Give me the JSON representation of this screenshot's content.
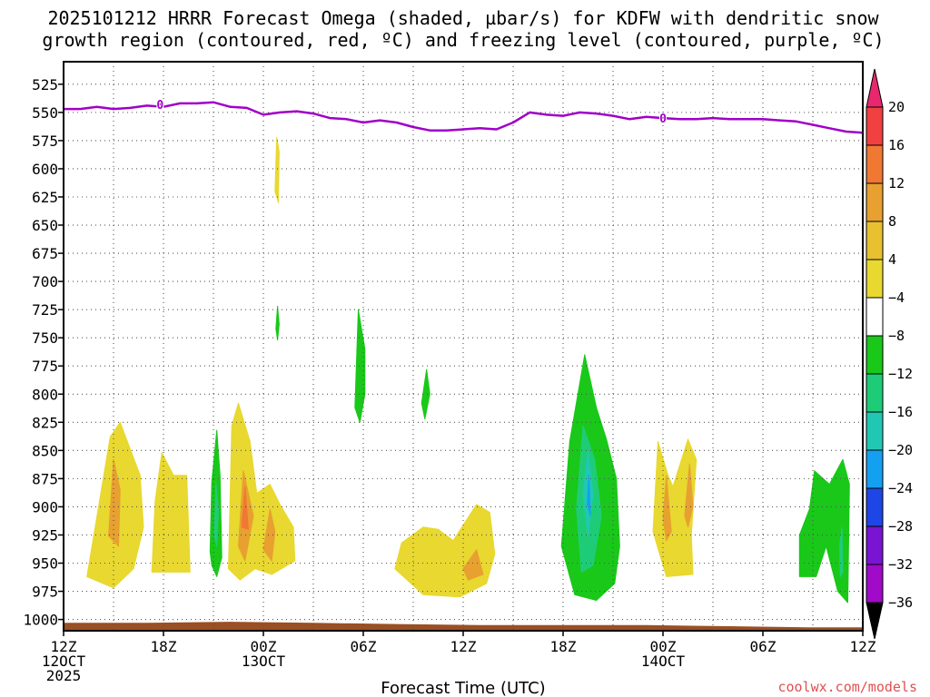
{
  "chart_data": {
    "type": "time-height contour",
    "title": [
      "2025101212 HRRR Forecast Omega (shaded, µbar/s) for KDFW with dendritic snow",
      "growth region (contoured, red, ºC) and freezing level (contoured, purple, ºC)"
    ],
    "xlabel": "Forecast Time (UTC)",
    "credit": "coolwx.com/models",
    "y_axis": {
      "unit": "hPa",
      "range": [
        1010,
        505
      ],
      "reversed": true,
      "ticks": [
        525,
        550,
        575,
        600,
        625,
        650,
        675,
        700,
        725,
        750,
        775,
        800,
        825,
        850,
        875,
        900,
        925,
        950,
        975,
        1000
      ]
    },
    "x_axis": {
      "unit": "forecast hour",
      "range": [
        0,
        48
      ],
      "ticks": [
        {
          "h": 0,
          "lines": [
            "12Z",
            "12OCT",
            "2025"
          ]
        },
        {
          "h": 6,
          "lines": [
            "18Z"
          ]
        },
        {
          "h": 12,
          "lines": [
            "00Z",
            "13OCT"
          ]
        },
        {
          "h": 18,
          "lines": [
            "06Z"
          ]
        },
        {
          "h": 24,
          "lines": [
            "12Z"
          ]
        },
        {
          "h": 30,
          "lines": [
            "18Z"
          ]
        },
        {
          "h": 36,
          "lines": [
            "00Z",
            "14OCT"
          ]
        },
        {
          "h": 42,
          "lines": [
            "06Z"
          ]
        },
        {
          "h": 48,
          "lines": [
            "12Z"
          ]
        }
      ]
    },
    "colorbar": {
      "ticks": [
        20,
        16,
        12,
        8,
        4,
        -4,
        -8,
        -12,
        -16,
        -20,
        -24,
        -28,
        -32,
        -36
      ],
      "colors": [
        "#e8286e",
        "#f04040",
        "#f07832",
        "#e8a030",
        "#e8c030",
        "#e8d830",
        "#ffffff",
        "#19c819",
        "#1ecc78",
        "#20c8b4",
        "#14a0f0",
        "#1e46e6",
        "#7814d2",
        "#a00ac8",
        "#a0a0a0",
        "#000000"
      ]
    },
    "freezing_level": {
      "color": "#a000c8",
      "hours": [
        0,
        1,
        2,
        3,
        4,
        5,
        6,
        7,
        8,
        9,
        10,
        11,
        12,
        13,
        14,
        15,
        16,
        17,
        18,
        19,
        20,
        21,
        22,
        23,
        24,
        25,
        26,
        27,
        28,
        29,
        30,
        31,
        32,
        33,
        34,
        35,
        36,
        37,
        38,
        39,
        40,
        41,
        42,
        43,
        44,
        45,
        46,
        47,
        48
      ],
      "pressure": [
        547,
        547,
        545,
        547,
        546,
        544,
        545,
        542,
        542,
        541,
        545,
        546,
        552,
        550,
        549,
        551,
        555,
        556,
        559,
        557,
        559,
        563,
        566,
        566,
        565,
        564,
        565,
        559,
        550,
        552,
        553,
        550,
        551,
        553,
        556,
        554,
        555,
        556,
        556,
        555,
        556,
        556,
        556,
        557,
        558,
        561,
        564,
        567,
        568
      ],
      "labels": [
        {
          "h": 5.8,
          "p": 543,
          "text": "0"
        },
        {
          "h": 36,
          "p": 555,
          "text": "0"
        }
      ]
    },
    "surface": {
      "color": "#9a4f24",
      "hours": [
        0,
        5,
        10,
        15,
        20,
        25,
        30,
        35,
        40,
        45,
        48
      ],
      "pressure": [
        1003,
        1003,
        1002,
        1003,
        1004,
        1005,
        1005,
        1005,
        1006,
        1007,
        1007
      ]
    },
    "omega_regions": [
      {
        "category": "4 to 8",
        "color": "#e8d830",
        "points": [
          [
            1.4,
            962
          ],
          [
            2.8,
            838
          ],
          [
            3.4,
            825
          ],
          [
            4.6,
            872
          ],
          [
            4.8,
            918
          ],
          [
            4.2,
            955
          ],
          [
            3.0,
            972
          ]
        ]
      },
      {
        "category": "8 to 12",
        "color": "#e8a030",
        "points": [
          [
            2.7,
            926
          ],
          [
            3.0,
            858
          ],
          [
            3.4,
            885
          ],
          [
            3.3,
            935
          ]
        ]
      },
      {
        "category": "4 to 8",
        "color": "#e8d830",
        "points": [
          [
            5.3,
            958
          ],
          [
            5.5,
            895
          ],
          [
            5.9,
            852
          ],
          [
            6.6,
            872
          ],
          [
            7.4,
            872
          ],
          [
            7.6,
            958
          ]
        ]
      },
      {
        "category": "-8 to -4",
        "color": "#19c819",
        "points": [
          [
            8.8,
            940
          ],
          [
            8.9,
            878
          ],
          [
            9.2,
            832
          ],
          [
            9.4,
            872
          ],
          [
            9.5,
            945
          ],
          [
            9.2,
            962
          ],
          [
            8.9,
            952
          ]
        ]
      },
      {
        "category": "-12 to -8",
        "color": "#1ecc78",
        "points": [
          [
            9.05,
            925
          ],
          [
            9.15,
            878
          ],
          [
            9.3,
            902
          ],
          [
            9.2,
            935
          ]
        ]
      },
      {
        "category": "4 to 8",
        "color": "#e8d830",
        "points": [
          [
            9.9,
            955
          ],
          [
            10.1,
            828
          ],
          [
            10.5,
            808
          ],
          [
            11.2,
            842
          ],
          [
            11.6,
            888
          ],
          [
            12.4,
            880
          ],
          [
            13.0,
            898
          ],
          [
            13.8,
            918
          ],
          [
            13.9,
            948
          ],
          [
            12.5,
            960
          ],
          [
            11.5,
            955
          ],
          [
            10.6,
            965
          ]
        ]
      },
      {
        "category": "8 to 12",
        "color": "#e8a030",
        "points": [
          [
            10.5,
            935
          ],
          [
            10.8,
            868
          ],
          [
            11.4,
            908
          ],
          [
            10.9,
            948
          ]
        ]
      },
      {
        "category": "12 to 16",
        "color": "#f07832",
        "points": [
          [
            10.7,
            918
          ],
          [
            10.9,
            882
          ],
          [
            11.1,
            920
          ]
        ]
      },
      {
        "category": "8 to 12",
        "color": "#e8a030",
        "points": [
          [
            12.0,
            938
          ],
          [
            12.4,
            902
          ],
          [
            12.7,
            922
          ],
          [
            12.5,
            948
          ]
        ]
      },
      {
        "category": "4 to 8",
        "color": "#e8d830",
        "points": [
          [
            12.7,
            620
          ],
          [
            12.8,
            572
          ],
          [
            12.95,
            585
          ],
          [
            12.9,
            630
          ]
        ]
      },
      {
        "category": "-8 to -4",
        "color": "#19c819",
        "points": [
          [
            12.75,
            742
          ],
          [
            12.85,
            722
          ],
          [
            12.95,
            738
          ],
          [
            12.85,
            752
          ]
        ]
      },
      {
        "category": "-8 to -4",
        "color": "#19c819",
        "points": [
          [
            17.5,
            812
          ],
          [
            17.7,
            725
          ],
          [
            18.1,
            760
          ],
          [
            18.1,
            800
          ],
          [
            17.8,
            825
          ]
        ]
      },
      {
        "category": "-8 to -4",
        "color": "#19c819",
        "points": [
          [
            21.5,
            808
          ],
          [
            21.8,
            778
          ],
          [
            22.0,
            800
          ],
          [
            21.7,
            822
          ]
        ]
      },
      {
        "category": "4 to 8",
        "color": "#e8d830",
        "points": [
          [
            19.9,
            955
          ],
          [
            20.3,
            932
          ],
          [
            21.6,
            918
          ],
          [
            22.5,
            920
          ],
          [
            23.4,
            930
          ],
          [
            24.8,
            898
          ],
          [
            25.6,
            905
          ],
          [
            25.9,
            942
          ],
          [
            25.4,
            968
          ],
          [
            23.8,
            980
          ],
          [
            21.6,
            978
          ]
        ]
      },
      {
        "category": "8 to 12",
        "color": "#e8a030",
        "points": [
          [
            24.0,
            955
          ],
          [
            24.8,
            938
          ],
          [
            25.2,
            960
          ],
          [
            24.3,
            965
          ]
        ]
      },
      {
        "category": "-8 to -4",
        "color": "#19c819",
        "points": [
          [
            29.9,
            935
          ],
          [
            30.4,
            842
          ],
          [
            31.3,
            765
          ],
          [
            32.0,
            812
          ],
          [
            32.6,
            840
          ],
          [
            33.2,
            875
          ],
          [
            33.4,
            935
          ],
          [
            33.1,
            968
          ],
          [
            32.0,
            983
          ],
          [
            30.7,
            978
          ]
        ]
      },
      {
        "category": "-12 to -8",
        "color": "#1ecc78",
        "points": [
          [
            30.8,
            902
          ],
          [
            31.2,
            828
          ],
          [
            31.9,
            858
          ],
          [
            32.3,
            908
          ],
          [
            31.8,
            952
          ],
          [
            31.1,
            958
          ]
        ]
      },
      {
        "category": "-16 to -12",
        "color": "#20c8b4",
        "points": [
          [
            31.2,
            888
          ],
          [
            31.5,
            852
          ],
          [
            31.8,
            888
          ],
          [
            31.5,
            925
          ]
        ]
      },
      {
        "category": "-20 to -16",
        "color": "#14a0f0",
        "points": [
          [
            31.45,
            898
          ],
          [
            31.55,
            872
          ],
          [
            31.65,
            908
          ]
        ]
      },
      {
        "category": "4 to 8",
        "color": "#e8d830",
        "points": [
          [
            35.4,
            922
          ],
          [
            35.7,
            842
          ],
          [
            36.3,
            872
          ],
          [
            36.6,
            882
          ],
          [
            37.5,
            840
          ],
          [
            38.0,
            858
          ],
          [
            37.7,
            925
          ],
          [
            37.8,
            960
          ],
          [
            36.2,
            962
          ]
        ]
      },
      {
        "category": "8 to 12",
        "color": "#e8a030",
        "points": [
          [
            36.0,
            910
          ],
          [
            36.2,
            872
          ],
          [
            36.5,
            922
          ],
          [
            36.2,
            930
          ]
        ]
      },
      {
        "category": "8 to 12",
        "color": "#e8a030",
        "points": [
          [
            37.3,
            908
          ],
          [
            37.6,
            862
          ],
          [
            37.8,
            900
          ],
          [
            37.5,
            918
          ]
        ]
      },
      {
        "category": "-8 to -4",
        "color": "#19c819",
        "points": [
          [
            44.2,
            925
          ],
          [
            44.8,
            902
          ],
          [
            45.1,
            868
          ],
          [
            46.0,
            880
          ],
          [
            46.8,
            858
          ],
          [
            47.2,
            880
          ],
          [
            47.1,
            985
          ],
          [
            46.5,
            975
          ],
          [
            45.8,
            935
          ],
          [
            45.2,
            962
          ],
          [
            44.2,
            962
          ]
        ]
      },
      {
        "category": "-12 to -8",
        "color": "#1ecc78",
        "points": [
          [
            46.6,
            935
          ],
          [
            46.75,
            918
          ],
          [
            46.8,
            958
          ],
          [
            46.65,
            962
          ]
        ]
      }
    ]
  }
}
